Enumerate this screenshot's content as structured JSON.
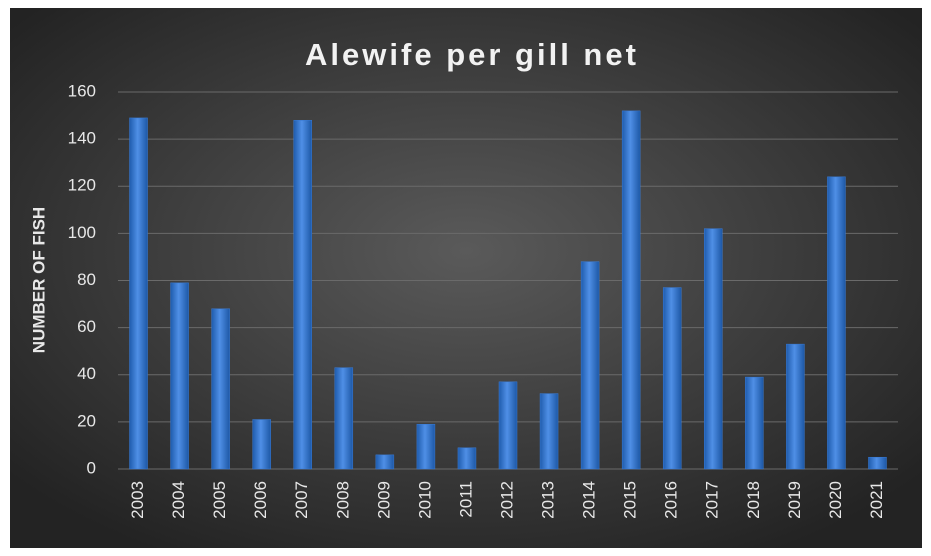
{
  "chart_data": {
    "type": "bar",
    "title": "Alewife per gill net",
    "y_label": "NUMBER OF FISH",
    "categories": [
      "2003",
      "2004",
      "2005",
      "2006",
      "2007",
      "2008",
      "2009",
      "2010",
      "2011",
      "2012",
      "2013",
      "2014",
      "2015",
      "2016",
      "2017",
      "2018",
      "2019",
      "2020",
      "2021"
    ],
    "values": [
      149,
      79,
      68,
      21,
      148,
      43,
      6,
      19,
      9,
      37,
      32,
      88,
      152,
      77,
      102,
      39,
      53,
      124,
      5
    ],
    "color": "#3a7bd5",
    "ylim": [
      0,
      160
    ],
    "yticks": [
      0,
      20,
      40,
      60,
      80,
      100,
      120,
      140,
      160
    ],
    "grid": true
  }
}
